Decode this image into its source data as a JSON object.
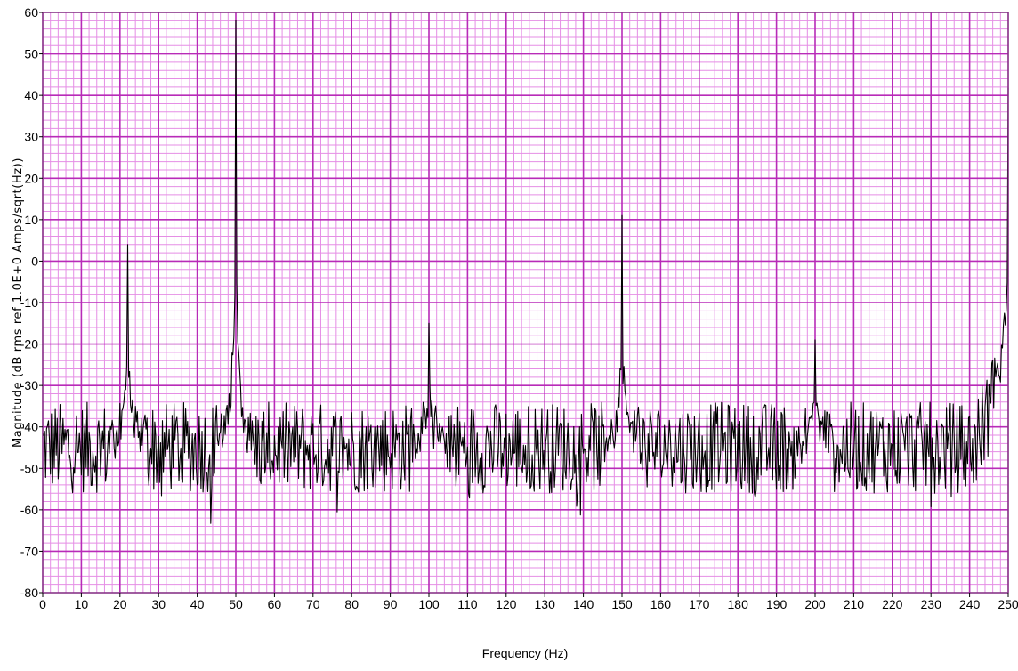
{
  "chart_data": {
    "type": "line",
    "title": "",
    "xlabel": "Frequency (Hz)",
    "ylabel": "Magnitude (dB rms ref 1.0E+0 Amps/sqrt(Hz))",
    "xlim": [
      0,
      250
    ],
    "ylim": [
      -80,
      60
    ],
    "x_ticks": [
      0,
      10,
      20,
      30,
      40,
      50,
      60,
      70,
      80,
      90,
      100,
      110,
      120,
      130,
      140,
      150,
      160,
      170,
      180,
      190,
      200,
      210,
      220,
      230,
      240,
      250
    ],
    "x_tick_labels": [
      "0",
      "10",
      "20",
      "30",
      "40",
      "50",
      "60",
      "70",
      "80",
      "90",
      "100",
      "110",
      "120",
      "130",
      "140",
      "150",
      "160",
      "170",
      "180",
      "190",
      "200",
      "210",
      "220",
      "230",
      "240",
      "250"
    ],
    "y_ticks": [
      -80,
      -70,
      -60,
      -50,
      -40,
      -30,
      -20,
      -10,
      0,
      10,
      20,
      30,
      40,
      50,
      60
    ],
    "y_tick_labels": [
      "-80",
      "-70",
      "-60",
      "-50",
      "-40",
      "-30",
      "-20",
      "-10",
      "0",
      "10",
      "20",
      "30",
      "40",
      "50",
      "60"
    ],
    "grid": true,
    "colors": {
      "plot_background": "#ffffff",
      "major_grid": "#b82bb8",
      "minor_grid": "#e58ee5",
      "trace": "#000000"
    },
    "series": [
      {
        "baseline_db": -45,
        "noise_amplitude_db": 11,
        "peaks": [
          {
            "x": 22,
            "y": 4
          },
          {
            "x": 50,
            "y": 58
          },
          {
            "x": 100,
            "y": -15
          },
          {
            "x": 150,
            "y": 11
          },
          {
            "x": 200,
            "y": -19
          },
          {
            "x": 250,
            "y": 22
          }
        ]
      }
    ]
  }
}
